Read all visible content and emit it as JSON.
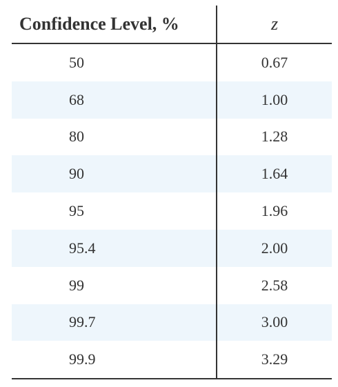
{
  "table": {
    "header": [
      "Confidence Level, %",
      "z"
    ],
    "rows": [
      [
        "50",
        "0.67"
      ],
      [
        "68",
        "1.00"
      ],
      [
        "80",
        "1.28"
      ],
      [
        "90",
        "1.64"
      ],
      [
        "95",
        "1.96"
      ],
      [
        "95.4",
        "2.00"
      ],
      [
        "99",
        "2.58"
      ],
      [
        "99.7",
        "3.00"
      ],
      [
        "99.9",
        "3.29"
      ]
    ]
  }
}
